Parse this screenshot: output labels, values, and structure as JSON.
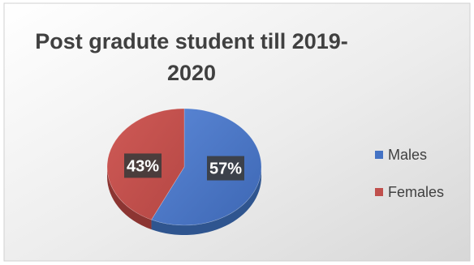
{
  "chart_data": {
    "type": "pie",
    "title": "Post gradute student till 2019-2020",
    "title_lines": [
      "Post gradute student till 2019-",
      "2020"
    ],
    "categories": [
      "Males",
      "Females"
    ],
    "values": [
      57,
      43
    ],
    "data_labels": [
      "57%",
      "43%"
    ],
    "colors": [
      "#4472c4",
      "#c0504d"
    ],
    "style": "3d",
    "legend": "right"
  }
}
